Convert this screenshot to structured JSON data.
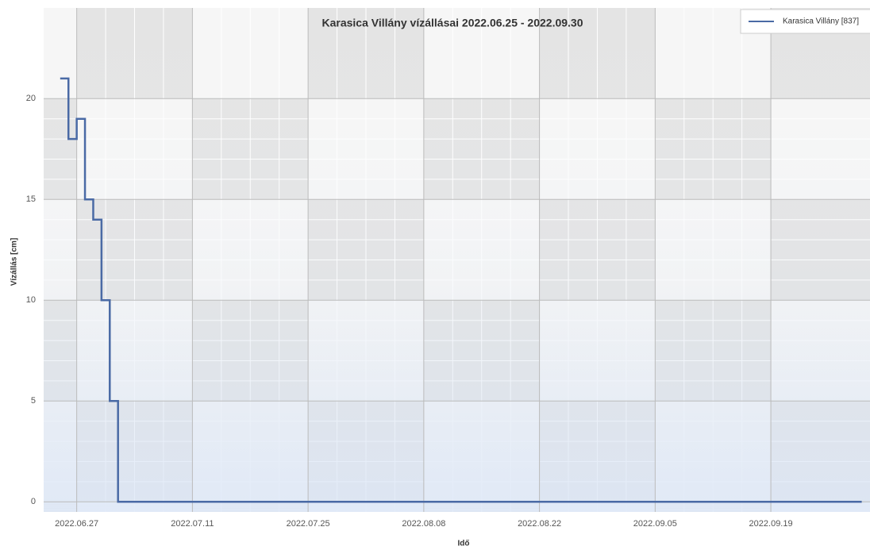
{
  "chart_data": {
    "type": "line",
    "step": true,
    "title": "Karasica Villány vízállásai 2022.06.25 - 2022.09.30",
    "x_label": "Idő",
    "y_label": "Vízállás [cm]",
    "x": [
      "2022.06.25",
      "2022.06.26",
      "2022.06.27",
      "2022.06.28",
      "2022.06.29",
      "2022.06.30",
      "2022.07.01",
      "2022.07.02",
      "2022.09.30"
    ],
    "series": [
      {
        "name": "Karasica Villány [837]",
        "color": "#4a6aa5",
        "values": [
          21,
          18,
          19,
          15,
          14,
          10,
          5,
          0,
          0
        ]
      }
    ],
    "xlim": [
      "2022.06.23",
      "2022.10.01"
    ],
    "xticks": [
      "2022.06.27",
      "2022.07.11",
      "2022.07.25",
      "2022.08.08",
      "2022.08.22",
      "2022.09.05",
      "2022.09.19"
    ],
    "ylim": [
      -0.5,
      24.5
    ],
    "yticks": [
      0,
      5,
      10,
      15,
      20
    ],
    "grid": true,
    "legend": "top-right"
  }
}
